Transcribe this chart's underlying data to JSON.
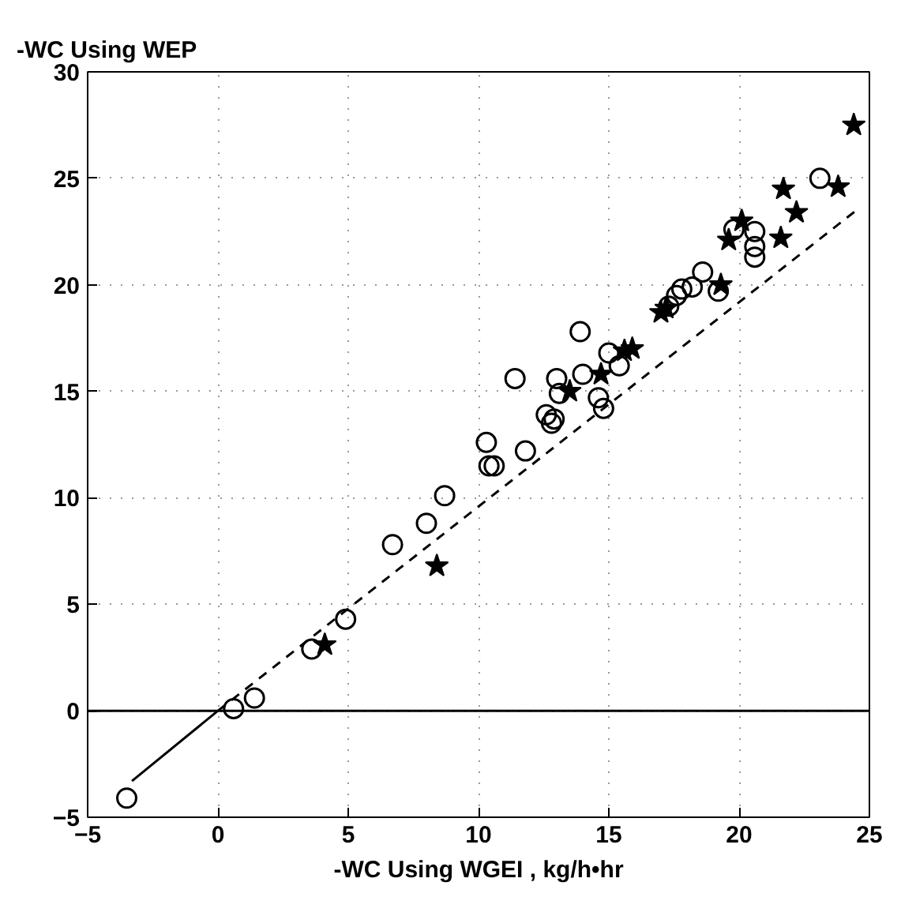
{
  "chart_data": {
    "type": "scatter",
    "ylabel": "-WC Using WEP",
    "xlabel": "-WC Using WGEI , kg/h•hr",
    "xlim": [
      -5,
      25
    ],
    "ylim": [
      -5,
      30
    ],
    "xticks": [
      -5,
      0,
      5,
      10,
      15,
      20,
      25
    ],
    "yticks": [
      -5,
      0,
      5,
      10,
      15,
      20,
      25,
      30
    ],
    "grid": true,
    "series": [
      {
        "color": "#000000",
        "marker": "circle",
        "x": [
          -3.5,
          0.6,
          1.4,
          3.6,
          4.9,
          6.7,
          8.0,
          8.7,
          10.3,
          10.4,
          10.6,
          11.4,
          11.8,
          12.6,
          12.8,
          12.9,
          13.0,
          13.1,
          13.9,
          14.0,
          14.6,
          14.8,
          15.0,
          15.4,
          17.3,
          17.6,
          17.8,
          18.2,
          18.6,
          19.2,
          19.8,
          20.6,
          20.6,
          20.6,
          23.1
        ],
        "values": [
          -4.1,
          0.1,
          0.6,
          2.9,
          4.3,
          7.8,
          8.8,
          10.1,
          12.6,
          11.5,
          11.5,
          15.6,
          12.2,
          13.9,
          13.5,
          13.7,
          15.6,
          14.9,
          17.8,
          15.8,
          14.7,
          14.2,
          16.8,
          16.2,
          19.0,
          19.5,
          19.8,
          19.9,
          20.6,
          19.7,
          22.6,
          22.5,
          21.8,
          21.3,
          25.0
        ]
      },
      {
        "color": "#000000",
        "marker": "star",
        "x": [
          4.1,
          8.4,
          13.5,
          14.7,
          15.6,
          15.9,
          17.0,
          17.2,
          19.3,
          19.6,
          20.1,
          21.6,
          21.7,
          22.2,
          23.8,
          24.4
        ],
        "values": [
          3.1,
          6.8,
          15.0,
          15.8,
          16.9,
          17.0,
          18.7,
          18.9,
          20.0,
          22.1,
          23.0,
          22.2,
          24.5,
          23.4,
          24.6,
          27.5
        ]
      },
      {
        "type": "line",
        "color": "#000000",
        "line_style": "solid",
        "marker": "none",
        "x": [
          -3.3,
          0
        ],
        "values": [
          -3.3,
          0
        ]
      },
      {
        "type": "line",
        "color": "#000000",
        "line_style": "dashed",
        "marker": "none",
        "x": [
          0,
          24.5
        ],
        "values": [
          0,
          23.5
        ]
      }
    ],
    "ref_lines": [
      {
        "axis": "y",
        "value": 0,
        "color": "#000000",
        "line_style": "solid"
      }
    ]
  }
}
